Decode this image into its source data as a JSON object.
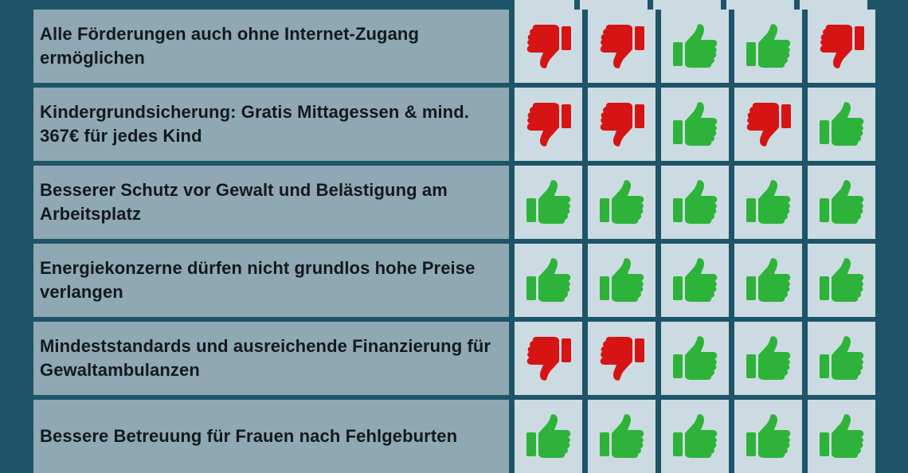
{
  "colors": {
    "background": "#1d5468",
    "label_cell": "#8fa8b3",
    "vote_cell": "#ccdbe1",
    "thumb_up": "#2eb33a",
    "thumb_down": "#d61414"
  },
  "rows": [
    {
      "label": "Alle Förderungen auch ohne Internet-Zugang ermöglichen",
      "votes": [
        "down",
        "down",
        "up",
        "up",
        "down"
      ]
    },
    {
      "label": "Kindergrundsicherung: Gratis Mittagessen & mind. 367€ für jedes Kind",
      "votes": [
        "down",
        "down",
        "up",
        "down",
        "up"
      ]
    },
    {
      "label": "Besserer Schutz vor Gewalt und Belästigung am Arbeitsplatz",
      "votes": [
        "up",
        "up",
        "up",
        "up",
        "up"
      ]
    },
    {
      "label": "Energiekonzerne dürfen nicht grundlos hohe Preise verlangen",
      "votes": [
        "up",
        "up",
        "up",
        "up",
        "up"
      ]
    },
    {
      "label": "Mindeststandards und ausreichende Finanzierung für Gewaltambulanzen",
      "votes": [
        "down",
        "down",
        "up",
        "up",
        "up"
      ]
    },
    {
      "label": "Bessere Betreuung für Frauen nach Fehlgeburten",
      "votes": [
        "up",
        "up",
        "up",
        "up",
        "up"
      ]
    }
  ],
  "icons": {
    "up": "thumbs-up-icon",
    "down": "thumbs-down-icon"
  }
}
